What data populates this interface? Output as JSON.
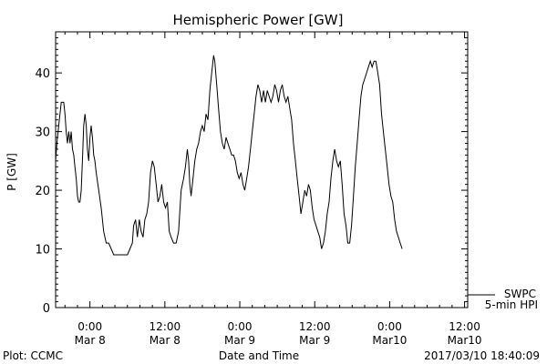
{
  "chart_data": {
    "type": "line",
    "title": "Hemispheric Power [GW]",
    "ylabel": "P [GW]",
    "xlabel": "Date and Time",
    "ylim": [
      0,
      47
    ],
    "yticks": [
      0,
      10,
      20,
      30,
      40
    ],
    "x_unit": "hours since Mar 8 00:00 (axis labels shown below)",
    "xlim": [
      -5.5,
      60.5
    ],
    "xticks": [
      {
        "x": 0,
        "time": "0:00",
        "date": "Mar 8"
      },
      {
        "x": 12,
        "time": "12:00",
        "date": "Mar 8"
      },
      {
        "x": 24,
        "time": "0:00",
        "date": "Mar 9"
      },
      {
        "x": 36,
        "time": "12:00",
        "date": "Mar 9"
      },
      {
        "x": 48,
        "time": "0:00",
        "date": "Mar10"
      },
      {
        "x": 60,
        "time": "12:00",
        "date": "Mar10"
      }
    ],
    "grid": false,
    "legend_position": "bottom-right",
    "series": [
      {
        "name": "SWPC 5-min HPI",
        "color": "#000000",
        "points": [
          [
            -5.5,
            25
          ],
          [
            -5.3,
            28
          ],
          [
            -5.0,
            31
          ],
          [
            -4.8,
            33
          ],
          [
            -4.6,
            35
          ],
          [
            -4.4,
            35
          ],
          [
            -4.2,
            35
          ],
          [
            -4.0,
            33
          ],
          [
            -3.8,
            30
          ],
          [
            -3.6,
            28
          ],
          [
            -3.4,
            30
          ],
          [
            -3.2,
            28
          ],
          [
            -3.0,
            30
          ],
          [
            -2.8,
            27
          ],
          [
            -2.6,
            26
          ],
          [
            -2.4,
            24
          ],
          [
            -2.2,
            22
          ],
          [
            -2.0,
            19
          ],
          [
            -1.8,
            18
          ],
          [
            -1.6,
            18
          ],
          [
            -1.4,
            20
          ],
          [
            -1.2,
            25
          ],
          [
            -1.0,
            31
          ],
          [
            -0.8,
            33
          ],
          [
            -0.6,
            31
          ],
          [
            -0.4,
            27
          ],
          [
            -0.2,
            25
          ],
          [
            0.0,
            29
          ],
          [
            0.2,
            31
          ],
          [
            0.4,
            29
          ],
          [
            0.6,
            26
          ],
          [
            0.8,
            25
          ],
          [
            1.0,
            23
          ],
          [
            1.4,
            20
          ],
          [
            1.8,
            17
          ],
          [
            2.2,
            13
          ],
          [
            2.6,
            11
          ],
          [
            3.0,
            11
          ],
          [
            3.4,
            10
          ],
          [
            3.8,
            9
          ],
          [
            4.4,
            9
          ],
          [
            5.0,
            9
          ],
          [
            5.6,
            9
          ],
          [
            6.0,
            9
          ],
          [
            6.4,
            10
          ],
          [
            6.8,
            11
          ],
          [
            7.0,
            14
          ],
          [
            7.3,
            15
          ],
          [
            7.6,
            12
          ],
          [
            7.9,
            15
          ],
          [
            8.2,
            13
          ],
          [
            8.5,
            12
          ],
          [
            8.8,
            15
          ],
          [
            9.1,
            16
          ],
          [
            9.4,
            18
          ],
          [
            9.7,
            23
          ],
          [
            10.0,
            25
          ],
          [
            10.3,
            24
          ],
          [
            10.6,
            21
          ],
          [
            10.9,
            18
          ],
          [
            11.2,
            19
          ],
          [
            11.5,
            21
          ],
          [
            11.8,
            18
          ],
          [
            12.1,
            17
          ],
          [
            12.4,
            18
          ],
          [
            12.7,
            13
          ],
          [
            13.0,
            12
          ],
          [
            13.4,
            11
          ],
          [
            13.8,
            11
          ],
          [
            14.2,
            13
          ],
          [
            14.6,
            20
          ],
          [
            15.0,
            22
          ],
          [
            15.3,
            24
          ],
          [
            15.6,
            27
          ],
          [
            15.8,
            25
          ],
          [
            16.0,
            21
          ],
          [
            16.2,
            19
          ],
          [
            16.5,
            22
          ],
          [
            16.8,
            25
          ],
          [
            17.1,
            27
          ],
          [
            17.4,
            28
          ],
          [
            17.7,
            30
          ],
          [
            18.0,
            31
          ],
          [
            18.3,
            30
          ],
          [
            18.6,
            33
          ],
          [
            18.9,
            32
          ],
          [
            19.2,
            37
          ],
          [
            19.5,
            40
          ],
          [
            19.8,
            43
          ],
          [
            20.0,
            42
          ],
          [
            20.3,
            38
          ],
          [
            20.6,
            34
          ],
          [
            20.9,
            30
          ],
          [
            21.2,
            28
          ],
          [
            21.5,
            27
          ],
          [
            21.8,
            29
          ],
          [
            22.1,
            28
          ],
          [
            22.4,
            27
          ],
          [
            22.7,
            26
          ],
          [
            23.0,
            26
          ],
          [
            23.3,
            25
          ],
          [
            23.6,
            23
          ],
          [
            23.9,
            22
          ],
          [
            24.2,
            23
          ],
          [
            24.5,
            21
          ],
          [
            24.8,
            20
          ],
          [
            25.1,
            22
          ],
          [
            25.4,
            24
          ],
          [
            25.7,
            27
          ],
          [
            26.0,
            30
          ],
          [
            26.3,
            33
          ],
          [
            26.6,
            36
          ],
          [
            26.9,
            38
          ],
          [
            27.2,
            37
          ],
          [
            27.5,
            35
          ],
          [
            27.8,
            37
          ],
          [
            28.1,
            35
          ],
          [
            28.4,
            37
          ],
          [
            28.7,
            36
          ],
          [
            29.0,
            35
          ],
          [
            29.3,
            36
          ],
          [
            29.6,
            38
          ],
          [
            29.9,
            37
          ],
          [
            30.2,
            35
          ],
          [
            30.5,
            37
          ],
          [
            30.8,
            38
          ],
          [
            31.1,
            36
          ],
          [
            31.4,
            35
          ],
          [
            31.7,
            36
          ],
          [
            32.0,
            34
          ],
          [
            32.3,
            32
          ],
          [
            32.6,
            28
          ],
          [
            32.9,
            25
          ],
          [
            33.2,
            22
          ],
          [
            33.5,
            19
          ],
          [
            33.8,
            16
          ],
          [
            34.1,
            18
          ],
          [
            34.4,
            20
          ],
          [
            34.7,
            19
          ],
          [
            35.0,
            21
          ],
          [
            35.3,
            20
          ],
          [
            35.6,
            17
          ],
          [
            35.9,
            15
          ],
          [
            36.2,
            14
          ],
          [
            36.5,
            13
          ],
          [
            36.8,
            12
          ],
          [
            37.1,
            10
          ],
          [
            37.4,
            11
          ],
          [
            37.7,
            13
          ],
          [
            38.0,
            16
          ],
          [
            38.3,
            18
          ],
          [
            38.6,
            22
          ],
          [
            38.9,
            25
          ],
          [
            39.2,
            27
          ],
          [
            39.5,
            25
          ],
          [
            39.8,
            24
          ],
          [
            40.1,
            25
          ],
          [
            40.4,
            21
          ],
          [
            40.7,
            16
          ],
          [
            41.0,
            14
          ],
          [
            41.3,
            11
          ],
          [
            41.6,
            11
          ],
          [
            41.9,
            14
          ],
          [
            42.2,
            19
          ],
          [
            42.5,
            24
          ],
          [
            42.8,
            28
          ],
          [
            43.1,
            32
          ],
          [
            43.4,
            36
          ],
          [
            43.7,
            38
          ],
          [
            44.0,
            39
          ],
          [
            44.3,
            40
          ],
          [
            44.6,
            41
          ],
          [
            44.9,
            42
          ],
          [
            45.2,
            41
          ],
          [
            45.5,
            42
          ],
          [
            45.8,
            42
          ],
          [
            46.1,
            40
          ],
          [
            46.4,
            38
          ],
          [
            46.7,
            33
          ],
          [
            47.0,
            30
          ],
          [
            47.3,
            27
          ],
          [
            47.6,
            24
          ],
          [
            47.9,
            21
          ],
          [
            48.2,
            19
          ],
          [
            48.5,
            18
          ],
          [
            48.8,
            15
          ],
          [
            49.1,
            13
          ],
          [
            49.4,
            12
          ],
          [
            49.7,
            11
          ],
          [
            50.0,
            10
          ]
        ]
      }
    ]
  },
  "legend": {
    "line1": "SWPC",
    "line2": "5-min HPI"
  },
  "footer": {
    "left": "Plot: CCMC",
    "right": "2017/03/10 18:40:09"
  }
}
